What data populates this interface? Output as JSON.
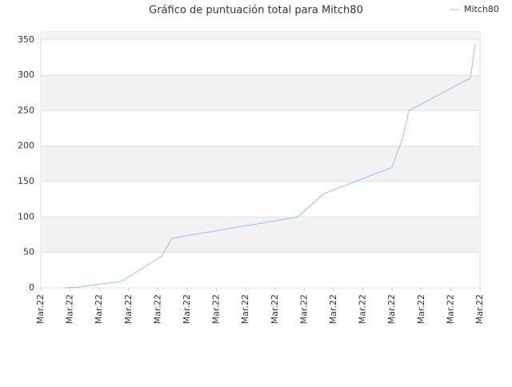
{
  "chart_data": {
    "type": "line",
    "title": "Gráfico de puntuación total para Mitch80",
    "x": [
      0.79,
      1.26,
      2.76,
      4.13,
      4.48,
      8.77,
      9.67,
      11.99,
      12.35,
      12.57,
      14.67,
      14.84
    ],
    "series": [
      {
        "name": "Mitch80",
        "color": "#90c4ee",
        "values": [
          0,
          1,
          9,
          45,
          70,
          100,
          133,
          170,
          210,
          250,
          296,
          345
        ]
      }
    ],
    "xlim": [
      0,
      15
    ],
    "xticks": [
      {
        "value": 0,
        "label": "Mar.22"
      },
      {
        "value": 1,
        "label": "Mar.22"
      },
      {
        "value": 2,
        "label": "Mar.22"
      },
      {
        "value": 3,
        "label": "Mar.22"
      },
      {
        "value": 4,
        "label": "Mar.22"
      },
      {
        "value": 5,
        "label": "Mar.22"
      },
      {
        "value": 6,
        "label": "Mar.22"
      },
      {
        "value": 7,
        "label": "Mar.22"
      },
      {
        "value": 8,
        "label": "Mar.22"
      },
      {
        "value": 9,
        "label": "Mar.22"
      },
      {
        "value": 10,
        "label": "Mar.22"
      },
      {
        "value": 11,
        "label": "Mar.22"
      },
      {
        "value": 12,
        "label": "Mar.22"
      },
      {
        "value": 13,
        "label": "Mar.22"
      },
      {
        "value": 14,
        "label": "Mar.22"
      },
      {
        "value": 15,
        "label": "Mar.22"
      }
    ],
    "ylim": [
      0,
      361
    ],
    "yticks": [
      0,
      50,
      100,
      150,
      200,
      250,
      300,
      350
    ],
    "grid": true
  }
}
